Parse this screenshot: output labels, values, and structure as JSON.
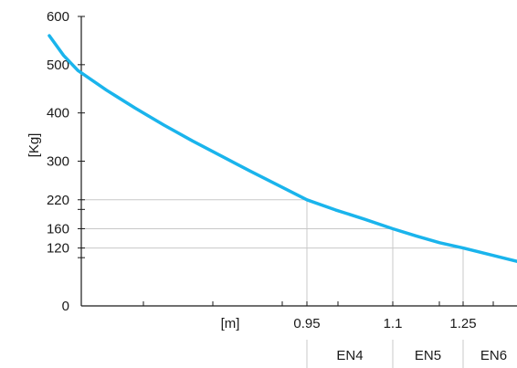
{
  "chart_data": {
    "type": "line",
    "ylabel": "[Kg]",
    "xlabel": "[m]",
    "ylim": [
      0,
      600
    ],
    "xlim": [
      0.5,
      1.375
    ],
    "y_ticks_labeled": [
      "0",
      "120",
      "160",
      "220",
      "300",
      "400",
      "500",
      "600"
    ],
    "x_ticks_labeled": [
      "0.95",
      "1.1",
      "1.25"
    ],
    "series": [
      {
        "color": "#1ab4ec",
        "points": [
          [
            0.5,
            560
          ],
          [
            0.525,
            519
          ],
          [
            0.55,
            488
          ],
          [
            0.6,
            447
          ],
          [
            0.65,
            410
          ],
          [
            0.7,
            375
          ],
          [
            0.75,
            342
          ],
          [
            0.8,
            311
          ],
          [
            0.85,
            280
          ],
          [
            0.9,
            250
          ],
          [
            0.95,
            220
          ],
          [
            1.0,
            199
          ],
          [
            1.05,
            180
          ],
          [
            1.1,
            160
          ],
          [
            1.15,
            145
          ],
          [
            1.2,
            131
          ],
          [
            1.25,
            120
          ],
          [
            1.3,
            108
          ],
          [
            1.35,
            96
          ],
          [
            1.375,
            90
          ]
        ]
      }
    ],
    "reference_lines": [
      {
        "x": 0.95,
        "y": 220
      },
      {
        "x": 1.1,
        "y": 160
      },
      {
        "x": 1.25,
        "y": 120
      }
    ],
    "classes": [
      "EN4",
      "EN5",
      "EN6"
    ],
    "grid": false
  }
}
